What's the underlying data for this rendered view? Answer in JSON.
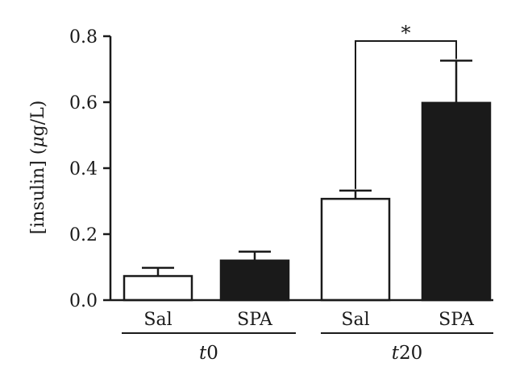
{
  "chart_data": {
    "type": "bar",
    "title": "",
    "ylabel_main": "[insulin] (",
    "ylabel_unit_greek": "μ",
    "ylabel_unit_rest": "g/L)",
    "ylim": [
      0,
      0.8
    ],
    "yticks": [
      "0.0",
      "0.2",
      "0.4",
      "0.6",
      "0.8"
    ],
    "ytick_values": [
      0,
      0.2,
      0.4,
      0.6,
      0.8
    ],
    "groups": [
      {
        "label_italic": "t",
        "label_rest": "0",
        "categories": [
          "Sal",
          "SPA"
        ]
      },
      {
        "label_italic": "t",
        "label_rest": "20",
        "categories": [
          "Sal",
          "SPA"
        ]
      }
    ],
    "bars": [
      {
        "group": 0,
        "category": "Sal",
        "value": 0.073,
        "error": 0.025,
        "fill": "#ffffff"
      },
      {
        "group": 0,
        "category": "SPA",
        "value": 0.12,
        "error": 0.027,
        "fill": "#1a1a1a"
      },
      {
        "group": 1,
        "category": "Sal",
        "value": 0.307,
        "error": 0.025,
        "fill": "#ffffff"
      },
      {
        "group": 1,
        "category": "SPA",
        "value": 0.598,
        "error": 0.128,
        "fill": "#1a1a1a"
      }
    ],
    "significance": {
      "label": "*",
      "between": [
        2,
        3
      ]
    },
    "colors": {
      "axis": "#1a1a1a",
      "dark_bar": "#1a1a1a",
      "light_bar": "#ffffff"
    }
  }
}
